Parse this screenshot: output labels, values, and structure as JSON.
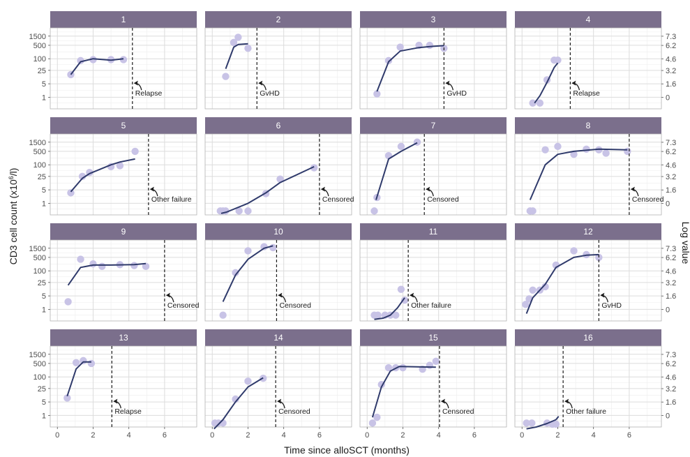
{
  "chart_data": {
    "type": "faceted-line-scatter",
    "title": "",
    "xlabel": "Time since alloSCT (months)",
    "ylabel": "CD3 cell count (x10^6/l)",
    "ylabel_parts": {
      "pre": "CD3 cell count (x10",
      "sup": "6",
      "post": "/l)"
    },
    "y2label": "Log value",
    "xlim": [
      -0.4,
      7.8
    ],
    "x_ticks": [
      0,
      2,
      4,
      6
    ],
    "y_scale": "log",
    "ylim": [
      0.25,
      4000
    ],
    "y_ticks": [
      1,
      5,
      25,
      100,
      500,
      1500
    ],
    "y2_ticks": [
      0,
      1.6,
      3.2,
      4.6,
      6.2,
      7.3
    ],
    "grid": true,
    "colors": {
      "strip": "#7b6f8c",
      "point": "#c8c3e6",
      "line": "#2f3a6b",
      "panel_border": "#b3b3b3",
      "grid_major": "#dcdcdc",
      "grid_minor": "#ededed"
    },
    "panels": [
      {
        "id": "1",
        "event_x": 4.2,
        "event": "Relapse",
        "points": [
          [
            0.75,
            15
          ],
          [
            1.3,
            80
          ],
          [
            2.0,
            90
          ],
          [
            3.0,
            90
          ],
          [
            3.7,
            90
          ]
        ],
        "fit": [
          [
            0.75,
            15
          ],
          [
            1.3,
            70
          ],
          [
            2.0,
            100
          ],
          [
            3.0,
            85
          ],
          [
            3.7,
            100
          ]
        ]
      },
      {
        "id": "2",
        "event_x": 2.5,
        "event": "GvHD",
        "points": [
          [
            0.75,
            12
          ],
          [
            1.2,
            700
          ],
          [
            1.45,
            1300
          ],
          [
            2.0,
            350
          ]
        ],
        "fit": [
          [
            0.75,
            30
          ],
          [
            1.2,
            400
          ],
          [
            1.45,
            550
          ],
          [
            2.0,
            600
          ]
        ]
      },
      {
        "id": "3",
        "event_x": 4.3,
        "event": "GvHD",
        "points": [
          [
            0.55,
            1.5
          ],
          [
            1.2,
            80
          ],
          [
            1.85,
            400
          ],
          [
            2.9,
            500
          ],
          [
            3.5,
            500
          ],
          [
            4.3,
            350
          ]
        ],
        "fit": [
          [
            0.55,
            2
          ],
          [
            1.2,
            70
          ],
          [
            1.85,
            250
          ],
          [
            2.9,
            380
          ],
          [
            3.5,
            430
          ],
          [
            4.3,
            480
          ]
        ]
      },
      {
        "id": "4",
        "event_x": 2.7,
        "event": "Relapse",
        "points": [
          [
            0.6,
            0.5
          ],
          [
            1.0,
            0.5
          ],
          [
            1.4,
            8
          ],
          [
            1.8,
            85
          ],
          [
            2.0,
            85
          ]
        ],
        "fit": [
          [
            0.7,
            0.5
          ],
          [
            1.0,
            1.2
          ],
          [
            1.4,
            6
          ],
          [
            1.8,
            35
          ],
          [
            2.0,
            60
          ]
        ]
      },
      {
        "id": "5",
        "event_x": 5.1,
        "event": "Other failure",
        "points": [
          [
            0.75,
            3.5
          ],
          [
            1.4,
            25
          ],
          [
            1.8,
            40
          ],
          [
            3.0,
            80
          ],
          [
            3.5,
            90
          ],
          [
            4.35,
            500
          ]
        ],
        "fit": [
          [
            0.75,
            4
          ],
          [
            1.4,
            20
          ],
          [
            1.8,
            35
          ],
          [
            3.0,
            100
          ],
          [
            3.5,
            140
          ],
          [
            4.35,
            200
          ]
        ]
      },
      {
        "id": "6",
        "event_x": 6.0,
        "event": "Censored",
        "points": [
          [
            0.45,
            0.4
          ],
          [
            0.6,
            0.4
          ],
          [
            0.75,
            0.4
          ],
          [
            1.5,
            0.4
          ],
          [
            2.0,
            0.4
          ],
          [
            3.0,
            3.2
          ],
          [
            3.8,
            18
          ],
          [
            5.7,
            70
          ]
        ],
        "fit": [
          [
            0.5,
            0.3
          ],
          [
            0.8,
            0.35
          ],
          [
            2.0,
            1.0
          ],
          [
            3.0,
            3.5
          ],
          [
            3.8,
            12
          ],
          [
            5.7,
            80
          ]
        ]
      },
      {
        "id": "7",
        "event_x": 3.2,
        "event": "Censored",
        "points": [
          [
            0.4,
            0.4
          ],
          [
            0.55,
            2
          ],
          [
            1.2,
            300
          ],
          [
            1.9,
            900
          ],
          [
            2.8,
            1500
          ]
        ],
        "fit": [
          [
            0.5,
            1.5
          ],
          [
            1.2,
            200
          ],
          [
            1.9,
            500
          ],
          [
            2.8,
            1400
          ]
        ]
      },
      {
        "id": "8",
        "event_x": 6.0,
        "event": "Censored",
        "points": [
          [
            0.45,
            0.4
          ],
          [
            0.6,
            0.4
          ],
          [
            1.3,
            600
          ],
          [
            2.0,
            900
          ],
          [
            2.9,
            350
          ],
          [
            3.6,
            650
          ],
          [
            4.3,
            600
          ],
          [
            4.7,
            400
          ],
          [
            5.9,
            500
          ]
        ],
        "fit": [
          [
            0.45,
            1.5
          ],
          [
            1.3,
            100
          ],
          [
            2.0,
            350
          ],
          [
            2.9,
            500
          ],
          [
            4.3,
            650
          ],
          [
            5.9,
            600
          ]
        ]
      },
      {
        "id": "9",
        "event_x": 6.0,
        "event": "Censored",
        "points": [
          [
            0.6,
            2.5
          ],
          [
            1.3,
            400
          ],
          [
            2.0,
            230
          ],
          [
            2.5,
            170
          ],
          [
            3.5,
            210
          ],
          [
            4.3,
            190
          ],
          [
            4.95,
            170
          ]
        ],
        "fit": [
          [
            0.6,
            18
          ],
          [
            1.3,
            150
          ],
          [
            2.0,
            200
          ],
          [
            3.0,
            200
          ],
          [
            4.3,
            210
          ],
          [
            4.95,
            240
          ]
        ]
      },
      {
        "id": "10",
        "event_x": 3.6,
        "event": "Censored",
        "points": [
          [
            0.6,
            0.5
          ],
          [
            1.3,
            80
          ],
          [
            2.0,
            1100
          ],
          [
            2.9,
            1800
          ],
          [
            3.4,
            1600
          ]
        ],
        "fit": [
          [
            0.6,
            2.5
          ],
          [
            1.3,
            60
          ],
          [
            2.0,
            400
          ],
          [
            2.9,
            1500
          ],
          [
            3.4,
            2000
          ]
        ]
      },
      {
        "id": "11",
        "event_x": 2.3,
        "event": "Other failure",
        "points": [
          [
            0.4,
            0.5
          ],
          [
            0.6,
            0.5
          ],
          [
            1.0,
            0.5
          ],
          [
            1.3,
            0.5
          ],
          [
            1.6,
            0.5
          ],
          [
            1.9,
            11
          ],
          [
            2.1,
            3
          ]
        ],
        "fit": [
          [
            0.4,
            0.3
          ],
          [
            0.9,
            0.35
          ],
          [
            1.3,
            0.5
          ],
          [
            1.7,
            1.2
          ],
          [
            2.1,
            4
          ]
        ]
      },
      {
        "id": "12",
        "event_x": 4.3,
        "event": "GvHD",
        "points": [
          [
            0.2,
            1.8
          ],
          [
            0.4,
            3.5
          ],
          [
            0.6,
            10
          ],
          [
            1.0,
            10
          ],
          [
            1.3,
            15
          ],
          [
            1.9,
            200
          ],
          [
            2.9,
            1100
          ],
          [
            3.6,
            700
          ],
          [
            4.3,
            500
          ]
        ],
        "fit": [
          [
            0.25,
            0.6
          ],
          [
            0.6,
            4
          ],
          [
            1.3,
            20
          ],
          [
            1.9,
            150
          ],
          [
            2.9,
            500
          ],
          [
            3.6,
            650
          ],
          [
            4.3,
            700
          ]
        ]
      },
      {
        "id": "13",
        "event_x": 3.05,
        "event": "Relapse",
        "points": [
          [
            0.55,
            8
          ],
          [
            1.05,
            550
          ],
          [
            1.45,
            700
          ],
          [
            1.9,
            500
          ]
        ],
        "fit": [
          [
            0.55,
            10
          ],
          [
            1.05,
            260
          ],
          [
            1.45,
            600
          ],
          [
            1.9,
            600
          ]
        ]
      },
      {
        "id": "14",
        "event_x": 3.55,
        "event": "Censored",
        "points": [
          [
            0.15,
            0.4
          ],
          [
            0.35,
            0.4
          ],
          [
            0.6,
            0.4
          ],
          [
            1.3,
            7
          ],
          [
            2.0,
            60
          ],
          [
            2.85,
            85
          ]
        ],
        "fit": [
          [
            0.1,
            0.2
          ],
          [
            0.6,
            0.6
          ],
          [
            1.3,
            5
          ],
          [
            2.0,
            30
          ],
          [
            2.85,
            90
          ]
        ]
      },
      {
        "id": "15",
        "event_x": 4.05,
        "event": "Censored",
        "points": [
          [
            0.3,
            0.4
          ],
          [
            0.55,
            0.8
          ],
          [
            0.8,
            40
          ],
          [
            1.2,
            300
          ],
          [
            1.6,
            300
          ],
          [
            2.0,
            300
          ],
          [
            3.1,
            250
          ],
          [
            3.5,
            400
          ],
          [
            3.85,
            650
          ]
        ],
        "fit": [
          [
            0.3,
            0.8
          ],
          [
            0.8,
            30
          ],
          [
            1.3,
            200
          ],
          [
            1.8,
            350
          ],
          [
            3.0,
            330
          ],
          [
            3.85,
            320
          ]
        ]
      },
      {
        "id": "16",
        "event_x": 2.3,
        "event": "Other failure",
        "points": [
          [
            0.25,
            0.4
          ],
          [
            0.55,
            0.4
          ],
          [
            1.4,
            0.4
          ],
          [
            1.7,
            0.35
          ],
          [
            1.9,
            0.35
          ]
        ],
        "fit": [
          [
            0.25,
            0.2
          ],
          [
            0.8,
            0.25
          ],
          [
            1.4,
            0.38
          ],
          [
            1.9,
            0.6
          ],
          [
            2.05,
            0.9
          ]
        ]
      }
    ]
  }
}
